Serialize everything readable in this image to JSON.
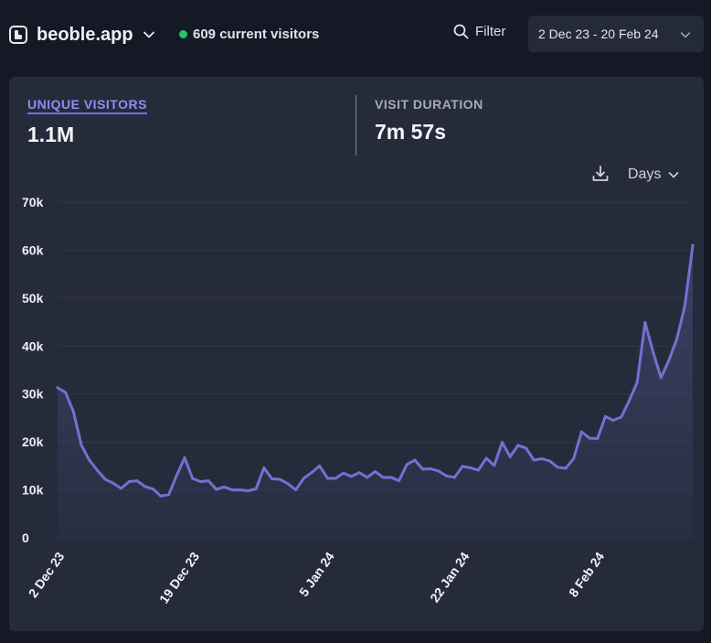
{
  "header": {
    "site_name": "beoble.app",
    "current_visitors": "609 current visitors",
    "filter_label": "Filter",
    "date_range": "2 Dec 23 - 20 Feb 24"
  },
  "metrics": [
    {
      "label": "UNIQUE VISITORS",
      "value": "1.1M",
      "active": true
    },
    {
      "label": "VISIT DURATION",
      "value": "7m 57s",
      "active": false
    }
  ],
  "controls": {
    "interval_label": "Days"
  },
  "colors": {
    "line": "#6f73cf",
    "live": "#22c55e",
    "accent": "#8b8ff5"
  },
  "chart_data": {
    "type": "area",
    "title": "",
    "xlabel": "",
    "ylabel": "",
    "ylim": [
      0,
      70000
    ],
    "yticks": [
      0,
      10000,
      20000,
      30000,
      40000,
      50000,
      60000,
      70000
    ],
    "ytick_labels": [
      "0",
      "10k",
      "20k",
      "30k",
      "40k",
      "50k",
      "60k",
      "70k"
    ],
    "grid": true,
    "legend": "none",
    "x_start": "2 Dec 23",
    "x_end": "20 Feb 24",
    "xtick_labels": [
      {
        "date": "2 Dec 23",
        "label": "2 Dec 23"
      },
      {
        "date": "19 Dec 23",
        "label": "19 Dec 23"
      },
      {
        "date": "5 Jan 24",
        "label": "5 Jan 24"
      },
      {
        "date": "22 Jan 24",
        "label": "22 Jan 24"
      },
      {
        "date": "8 Feb 24",
        "label": "8 Feb 24"
      }
    ],
    "series": [
      {
        "values": [
          31300,
          30300,
          26300,
          19300,
          16200,
          14100,
          12200,
          11400,
          10300,
          11700,
          11900,
          10700,
          10200,
          8700,
          9000,
          13000,
          16700,
          12400,
          11700,
          11900,
          10100,
          10600,
          10000,
          10000,
          9800,
          10200,
          14600,
          12300,
          12200,
          11300,
          10000,
          12400,
          13600,
          15000,
          12400,
          12400,
          13500,
          12800,
          13600,
          12600,
          13800,
          12600,
          12600,
          11900,
          15300,
          16200,
          14300,
          14400,
          13900,
          12900,
          12600,
          14900,
          14600,
          14100,
          16600,
          15100,
          19900,
          16900,
          19300,
          18700,
          16200,
          16500,
          16000,
          14700,
          14500,
          16500,
          22100,
          20800,
          20700,
          25300,
          24500,
          25200,
          28600,
          32400,
          44900,
          38800,
          33400,
          37000,
          41500,
          48300,
          61000
        ]
      }
    ]
  }
}
